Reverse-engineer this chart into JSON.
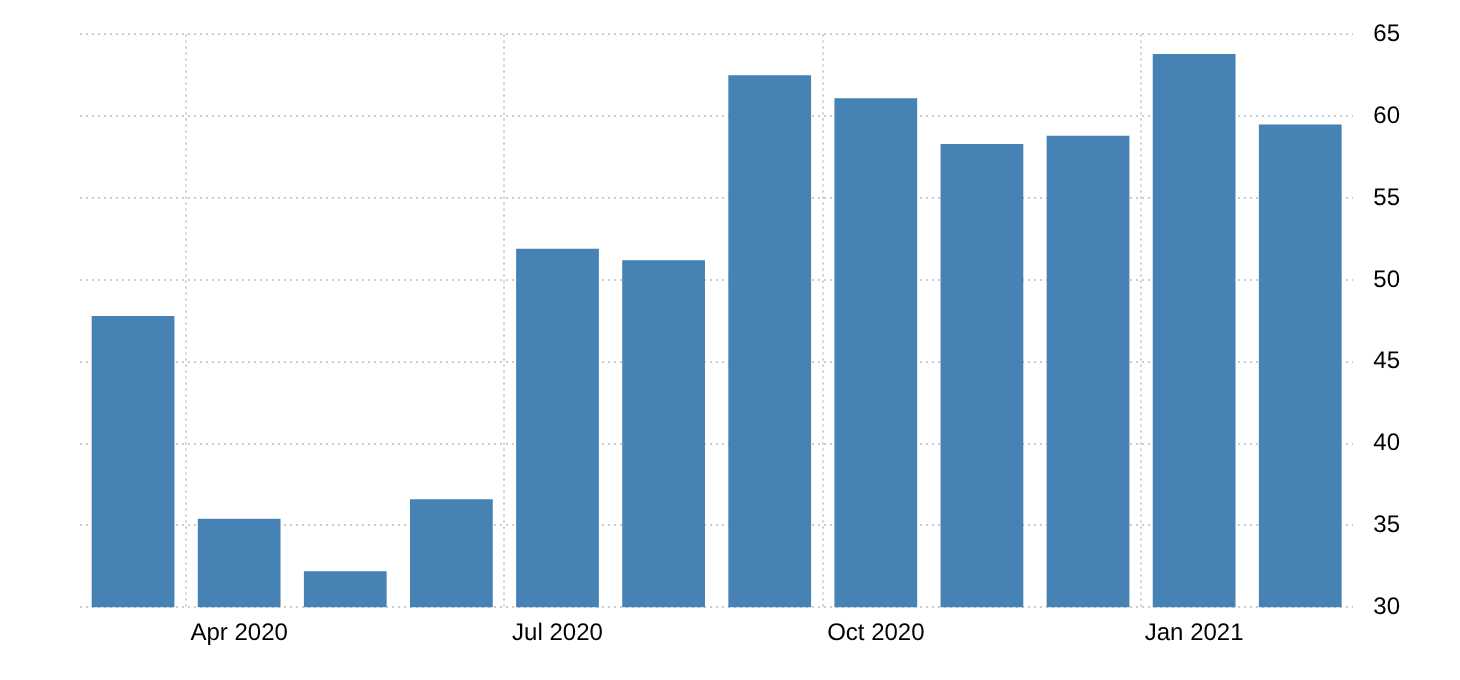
{
  "chart_data": {
    "type": "bar",
    "categories": [
      null,
      "Apr 2020",
      null,
      null,
      "Jul 2020",
      null,
      null,
      "Oct 2020",
      null,
      null,
      "Jan 2021",
      null
    ],
    "values": [
      47.8,
      35.4,
      32.2,
      36.6,
      51.9,
      51.2,
      62.5,
      61.1,
      58.3,
      58.8,
      63.8,
      59.5
    ],
    "color": "#4682b4",
    "ylim": [
      30,
      65
    ],
    "yticks": [
      30,
      35,
      40,
      45,
      50,
      55,
      60,
      65
    ],
    "grid": true,
    "legend": false
  }
}
